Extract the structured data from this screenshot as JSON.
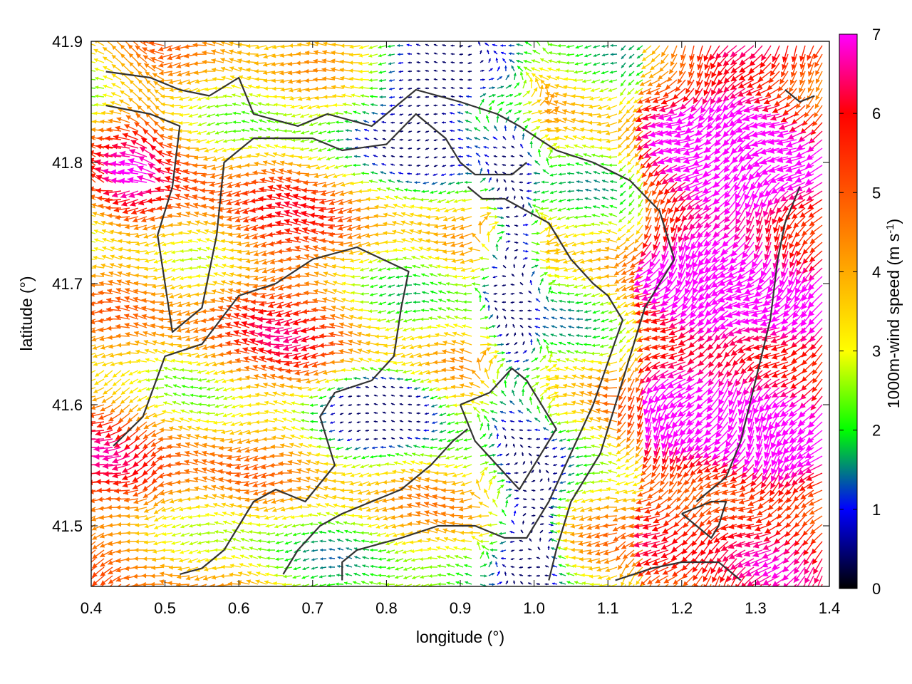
{
  "chart_data": {
    "type": "vector-field",
    "xlabel": "longitude (°)",
    "ylabel": "latitude (°)",
    "colorbar_label_main": "1000m-wind speed (m s",
    "colorbar_label_exp": "-1",
    "colorbar_label_close": ")",
    "xlim": [
      0.4,
      1.4
    ],
    "ylim": [
      41.45,
      41.9
    ],
    "xticks": [
      0.4,
      0.5,
      0.6,
      0.7,
      0.8,
      0.9,
      1.0,
      1.1,
      1.2,
      1.3,
      1.4
    ],
    "xtick_labels": [
      "0.4",
      "0.5",
      "0.6",
      "0.7",
      "0.8",
      "0.9",
      "1.0",
      "1.1",
      "1.2",
      "1.3",
      "1.4"
    ],
    "yticks": [
      41.5,
      41.6,
      41.7,
      41.8,
      41.9
    ],
    "ytick_labels": [
      "41.5",
      "41.6",
      "41.7",
      "41.8",
      "41.9"
    ],
    "colorbar": {
      "range": [
        0,
        7
      ],
      "ticks": [
        0,
        1,
        2,
        3,
        4,
        5,
        6,
        7
      ],
      "tick_labels": [
        "0",
        "1",
        "2",
        "3",
        "4",
        "5",
        "6",
        "7"
      ],
      "colors": [
        "#000000",
        "#0000ff",
        "#00ff00",
        "#ffff00",
        "#ffaa00",
        "#ff5500",
        "#ff0000",
        "#ff00ff"
      ]
    },
    "grid": false,
    "contours": [
      [
        [
          0.42,
          41.875
        ],
        [
          0.48,
          41.87
        ],
        [
          0.52,
          41.86
        ],
        [
          0.56,
          41.855
        ],
        [
          0.6,
          41.87
        ],
        [
          0.62,
          41.84
        ],
        [
          0.68,
          41.83
        ],
        [
          0.72,
          41.84
        ],
        [
          0.78,
          41.83
        ],
        [
          0.84,
          41.86
        ],
        [
          0.9,
          41.85
        ],
        [
          0.95,
          41.84
        ],
        [
          0.98,
          41.83
        ],
        [
          1.03,
          41.81
        ],
        [
          1.08,
          41.8
        ],
        [
          1.13,
          41.785
        ],
        [
          1.17,
          41.76
        ],
        [
          1.19,
          41.72
        ],
        [
          1.15,
          41.68
        ],
        [
          1.13,
          41.64
        ],
        [
          1.11,
          41.6
        ],
        [
          1.09,
          41.56
        ],
        [
          1.05,
          41.52
        ],
        [
          1.03,
          41.48
        ],
        [
          1.02,
          41.455
        ]
      ],
      [
        [
          0.42,
          41.847
        ],
        [
          0.48,
          41.84
        ],
        [
          0.52,
          41.83
        ],
        [
          0.51,
          41.78
        ],
        [
          0.49,
          41.74
        ],
        [
          0.5,
          41.7
        ],
        [
          0.51,
          41.66
        ],
        [
          0.55,
          41.68
        ],
        [
          0.56,
          41.71
        ],
        [
          0.57,
          41.74
        ],
        [
          0.58,
          41.8
        ],
        [
          0.62,
          41.82
        ],
        [
          0.7,
          41.82
        ],
        [
          0.74,
          41.81
        ],
        [
          0.8,
          41.815
        ],
        [
          0.84,
          41.84
        ],
        [
          0.88,
          41.82
        ],
        [
          0.9,
          41.8
        ],
        [
          0.92,
          41.79
        ],
        [
          0.97,
          41.79
        ],
        [
          0.99,
          41.8
        ]
      ],
      [
        [
          0.91,
          41.78
        ],
        [
          0.93,
          41.77
        ],
        [
          0.96,
          41.77
        ],
        [
          0.99,
          41.76
        ],
        [
          1.02,
          41.75
        ],
        [
          1.05,
          41.72
        ],
        [
          1.08,
          41.7
        ],
        [
          1.1,
          41.69
        ],
        [
          1.12,
          41.67
        ],
        [
          1.08,
          41.6
        ],
        [
          1.05,
          41.56
        ],
        [
          1.02,
          41.52
        ],
        [
          0.99,
          41.49
        ],
        [
          0.96,
          41.49
        ],
        [
          0.92,
          41.5
        ],
        [
          0.87,
          41.5
        ],
        [
          0.82,
          41.49
        ],
        [
          0.76,
          41.48
        ],
        [
          0.74,
          41.47
        ],
        [
          0.74,
          41.455
        ]
      ],
      [
        [
          0.43,
          41.566
        ],
        [
          0.47,
          41.59
        ],
        [
          0.5,
          41.64
        ],
        [
          0.55,
          41.65
        ],
        [
          0.6,
          41.69
        ],
        [
          0.65,
          41.7
        ],
        [
          0.7,
          41.72
        ],
        [
          0.76,
          41.73
        ],
        [
          0.83,
          41.71
        ],
        [
          0.82,
          41.68
        ],
        [
          0.81,
          41.64
        ],
        [
          0.78,
          41.62
        ],
        [
          0.73,
          41.61
        ],
        [
          0.71,
          41.59
        ],
        [
          0.73,
          41.55
        ],
        [
          0.69,
          41.52
        ],
        [
          0.65,
          41.53
        ],
        [
          0.62,
          41.52
        ],
        [
          0.6,
          41.5
        ],
        [
          0.58,
          41.48
        ],
        [
          0.55,
          41.465
        ],
        [
          0.52,
          41.46
        ]
      ],
      [
        [
          0.9,
          41.6
        ],
        [
          0.94,
          41.61
        ],
        [
          0.97,
          41.63
        ],
        [
          0.99,
          41.62
        ],
        [
          1.01,
          41.6
        ],
        [
          1.03,
          41.58
        ],
        [
          1.0,
          41.55
        ],
        [
          0.98,
          41.53
        ],
        [
          0.95,
          41.55
        ],
        [
          0.92,
          41.57
        ],
        [
          0.9,
          41.6
        ]
      ],
      [
        [
          1.34,
          41.86
        ],
        [
          1.36,
          41.85
        ],
        [
          1.38,
          41.855
        ]
      ],
      [
        [
          1.36,
          41.78
        ],
        [
          1.34,
          41.75
        ],
        [
          1.33,
          41.72
        ],
        [
          1.32,
          41.67
        ],
        [
          1.3,
          41.62
        ],
        [
          1.28,
          41.57
        ],
        [
          1.26,
          41.54
        ],
        [
          1.24,
          41.53
        ],
        [
          1.22,
          41.52
        ]
      ],
      [
        [
          1.2,
          41.51
        ],
        [
          1.22,
          41.515
        ],
        [
          1.24,
          41.52
        ],
        [
          1.26,
          41.52
        ],
        [
          1.25,
          41.5
        ],
        [
          1.24,
          41.49
        ],
        [
          1.22,
          41.5
        ],
        [
          1.2,
          41.51
        ]
      ],
      [
        [
          1.11,
          41.455
        ],
        [
          1.16,
          41.465
        ],
        [
          1.2,
          41.47
        ],
        [
          1.25,
          41.47
        ],
        [
          1.28,
          41.455
        ]
      ],
      [
        [
          0.66,
          41.46
        ],
        [
          0.68,
          41.48
        ],
        [
          0.71,
          41.5
        ],
        [
          0.74,
          41.51
        ],
        [
          0.78,
          41.52
        ],
        [
          0.82,
          41.53
        ],
        [
          0.86,
          41.55
        ],
        [
          0.89,
          41.57
        ],
        [
          0.91,
          41.58
        ]
      ]
    ]
  }
}
